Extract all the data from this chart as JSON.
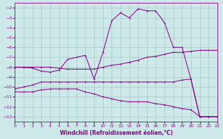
{
  "xlabel": "Windchill (Refroidissement éolien,°C)",
  "background_color": "#cce8e8",
  "grid_color": "#aacccc",
  "line_color": "#880088",
  "xlim": [
    0,
    23
  ],
  "ylim": [
    -13.5,
    -1.5
  ],
  "xticks": [
    0,
    1,
    2,
    3,
    4,
    5,
    6,
    7,
    8,
    9,
    10,
    11,
    12,
    13,
    14,
    15,
    16,
    17,
    18,
    19,
    20,
    21,
    22,
    23
  ],
  "yticks": [
    -2,
    -3,
    -4,
    -5,
    -6,
    -7,
    -8,
    -9,
    -10,
    -11,
    -12,
    -13
  ],
  "line1_x": [
    0,
    1,
    2,
    3,
    4,
    5,
    6,
    7,
    8,
    9,
    10,
    11,
    12,
    13,
    14,
    15,
    16,
    17,
    18,
    19,
    20,
    21,
    22,
    23
  ],
  "line1_y": [
    -8.0,
    -8.0,
    -8.1,
    -8.4,
    -8.5,
    -8.3,
    -7.2,
    -7.0,
    -6.8,
    -9.2,
    -6.5,
    -3.3,
    -2.5,
    -3.0,
    -2.1,
    -2.3,
    -2.3,
    -3.5,
    -6.0,
    -6.0,
    -9.2,
    -13.0,
    -13.0,
    -13.0
  ],
  "line2_x": [
    0,
    1,
    2,
    3,
    4,
    5,
    6,
    7,
    8,
    9,
    10,
    11,
    12,
    13,
    14,
    15,
    16,
    17,
    18,
    19,
    20,
    21,
    22,
    23
  ],
  "line2_y": [
    -8.0,
    -8.0,
    -8.0,
    -8.0,
    -8.0,
    -8.1,
    -8.2,
    -8.2,
    -8.2,
    -8.2,
    -8.0,
    -7.8,
    -7.7,
    -7.5,
    -7.3,
    -7.0,
    -6.9,
    -6.7,
    -6.5,
    -6.5,
    -6.4,
    -6.3,
    -6.3,
    -6.3
  ],
  "line3_x": [
    0,
    1,
    2,
    3,
    4,
    5,
    6,
    7,
    8,
    9,
    10,
    11,
    12,
    13,
    14,
    15,
    16,
    17,
    18,
    19,
    20,
    21,
    22,
    23
  ],
  "line3_y": [
    -10.2,
    -10.0,
    -9.8,
    -9.5,
    -9.5,
    -9.5,
    -9.5,
    -9.5,
    -9.5,
    -9.5,
    -9.5,
    -9.5,
    -9.5,
    -9.5,
    -9.5,
    -9.5,
    -9.5,
    -9.5,
    -9.5,
    -9.3,
    -9.2,
    -13.0,
    -13.0,
    -13.0
  ],
  "line4_x": [
    0,
    1,
    2,
    3,
    4,
    5,
    6,
    7,
    8,
    9,
    10,
    11,
    12,
    13,
    14,
    15,
    16,
    17,
    18,
    19,
    20,
    21,
    22,
    23
  ],
  "line4_y": [
    -10.5,
    -10.5,
    -10.5,
    -10.3,
    -10.2,
    -10.2,
    -10.2,
    -10.2,
    -10.5,
    -10.7,
    -11.0,
    -11.2,
    -11.4,
    -11.5,
    -11.5,
    -11.5,
    -11.7,
    -11.8,
    -12.0,
    -12.2,
    -12.3,
    -13.0,
    -13.0,
    -13.0
  ]
}
